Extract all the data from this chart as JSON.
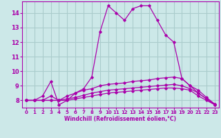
{
  "xlabel": "Windchill (Refroidissement éolien,°C)",
  "xlim": [
    -0.5,
    23.5
  ],
  "ylim": [
    7.5,
    14.8
  ],
  "xticks": [
    0,
    1,
    2,
    3,
    4,
    5,
    6,
    7,
    8,
    9,
    10,
    11,
    12,
    13,
    14,
    15,
    16,
    17,
    18,
    19,
    20,
    21,
    22,
    23
  ],
  "yticks": [
    8,
    9,
    10,
    11,
    12,
    13,
    14
  ],
  "background_color": "#cce8e8",
  "grid_color": "#aacccc",
  "line_color": "#aa00aa",
  "lines": [
    [
      8.0,
      8.0,
      8.3,
      9.3,
      7.7,
      8.0,
      8.5,
      8.8,
      9.6,
      12.7,
      14.5,
      14.0,
      13.5,
      14.3,
      14.5,
      14.5,
      13.5,
      12.5,
      12.0,
      9.5,
      9.0,
      8.5,
      8.1,
      7.7
    ],
    [
      8.0,
      8.0,
      8.0,
      8.3,
      8.0,
      8.3,
      8.5,
      8.7,
      8.8,
      9.0,
      9.1,
      9.15,
      9.2,
      9.3,
      9.35,
      9.4,
      9.5,
      9.55,
      9.6,
      9.5,
      9.0,
      8.7,
      8.2,
      7.75
    ],
    [
      8.0,
      8.0,
      8.0,
      8.0,
      8.0,
      8.1,
      8.2,
      8.35,
      8.5,
      8.6,
      8.7,
      8.75,
      8.8,
      8.85,
      8.9,
      8.95,
      9.0,
      9.05,
      9.1,
      9.0,
      8.8,
      8.5,
      8.1,
      7.75
    ],
    [
      8.0,
      8.0,
      8.0,
      8.0,
      8.0,
      8.0,
      8.1,
      8.2,
      8.3,
      8.4,
      8.5,
      8.55,
      8.6,
      8.65,
      8.7,
      8.75,
      8.8,
      8.85,
      8.85,
      8.8,
      8.7,
      8.3,
      8.0,
      7.7
    ]
  ]
}
